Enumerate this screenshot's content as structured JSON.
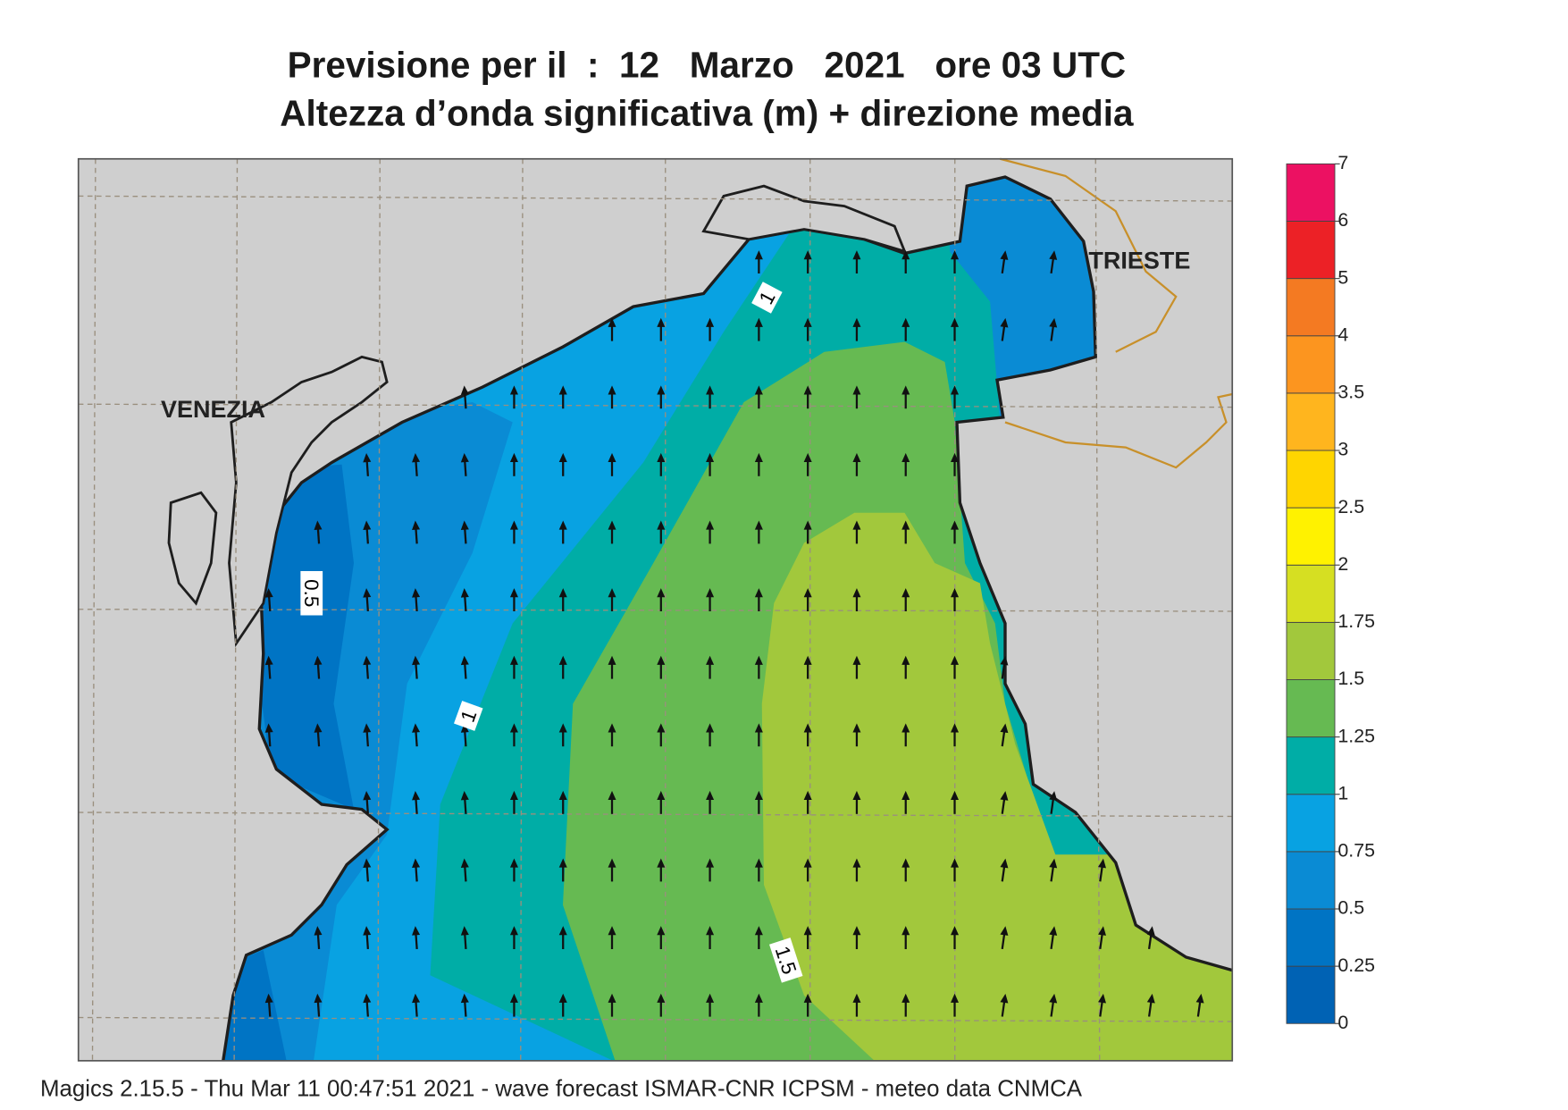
{
  "title": {
    "line1": "Previsione per il  :  12   Marzo   2021   ore 03 UTC",
    "line2": "Altezza d’onda significativa (m) + direzione media"
  },
  "map": {
    "place_labels": [
      "VENEZIA",
      "TRIESTE"
    ],
    "contour_labels": [
      "1",
      "0.5",
      "1",
      "1.5"
    ]
  },
  "colorbar": {
    "ticks": [
      0,
      0.25,
      0.5,
      0.75,
      1,
      1.25,
      1.5,
      1.75,
      2,
      2.5,
      3,
      3.5,
      4,
      5,
      6,
      7
    ],
    "colors": [
      "#0062b4",
      "#0074c4",
      "#0a8bd4",
      "#08a2e2",
      "#00ada6",
      "#66ba52",
      "#a2c83c",
      "#d6df22",
      "#fff200",
      "#ffd500",
      "#ffb51e",
      "#fc951f",
      "#f47a22",
      "#ec2126",
      "#ec1162"
    ]
  },
  "footer": "Magics 2.15.5 - Thu Mar 11 00:47:51 2021 - wave forecast  ISMAR-CNR  ICPSM - meteo data   CNMCA"
}
